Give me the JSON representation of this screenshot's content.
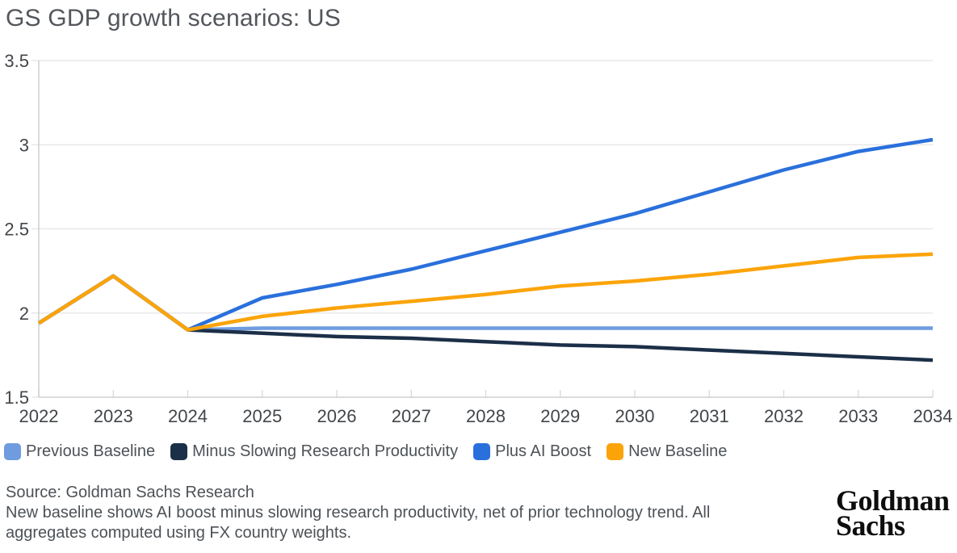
{
  "title": "GS GDP growth scenarios: US",
  "chart_data": {
    "type": "line",
    "x": [
      2022,
      2023,
      2024,
      2025,
      2026,
      2027,
      2028,
      2029,
      2030,
      2031,
      2032,
      2033,
      2034
    ],
    "series": [
      {
        "name": "Previous Baseline",
        "color": "#6f9cdf",
        "values": [
          1.94,
          2.22,
          1.9,
          1.91,
          1.91,
          1.91,
          1.91,
          1.91,
          1.91,
          1.91,
          1.91,
          1.91,
          1.91
        ]
      },
      {
        "name": "Minus Slowing Research Productivity",
        "color": "#1c2f48",
        "values": [
          1.94,
          2.22,
          1.9,
          1.88,
          1.86,
          1.85,
          1.83,
          1.81,
          1.8,
          1.78,
          1.76,
          1.74,
          1.72
        ]
      },
      {
        "name": "Plus AI Boost",
        "color": "#2a70dc",
        "values": [
          1.94,
          2.22,
          1.9,
          2.09,
          2.17,
          2.26,
          2.37,
          2.48,
          2.59,
          2.72,
          2.85,
          2.96,
          3.03
        ]
      },
      {
        "name": "New Baseline",
        "color": "#fba40a",
        "values": [
          1.94,
          2.22,
          1.9,
          1.98,
          2.03,
          2.07,
          2.11,
          2.16,
          2.19,
          2.23,
          2.28,
          2.33,
          2.35
        ]
      }
    ],
    "ylim": [
      1.5,
      3.5
    ],
    "yticks": [
      1.5,
      2,
      2.5,
      3,
      3.5
    ],
    "ytick_labels": [
      "1.5",
      "2",
      "2.5",
      "3",
      "3.5"
    ],
    "xtick_labels": [
      "2022",
      "2023",
      "2024",
      "2025",
      "2026",
      "2027",
      "2028",
      "2029",
      "2030",
      "2031",
      "2032",
      "2033",
      "2034"
    ],
    "grid": "horizontal",
    "legend_position": "bottom",
    "xlabel": "",
    "ylabel": ""
  },
  "footer": {
    "source": "Source: Goldman Sachs Research",
    "note_lines": [
      "New baseline shows AI boost minus slowing research productivity, net of prior technology trend. All",
      "aggregates computed using FX country weights."
    ]
  },
  "logo": {
    "line1": "Goldman",
    "line2": "Sachs"
  },
  "colors": {
    "grid": "#e4e4e4",
    "axis": "#c8c8c8",
    "tick": "#d9d9d9",
    "axis_label": "#42464a",
    "text": "#4d5257",
    "title": "#53575c",
    "logo": "#0d0d0d"
  }
}
